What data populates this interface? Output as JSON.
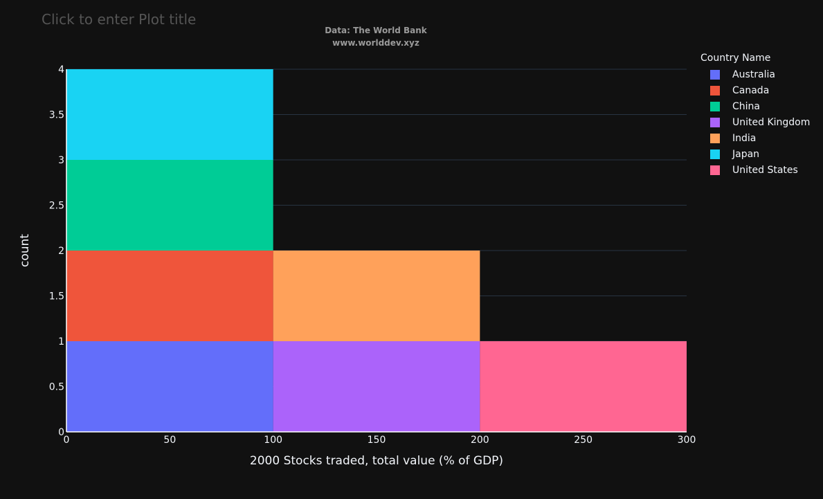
{
  "title_placeholder": "Click to enter Plot title",
  "source": {
    "line1": "Data: The World Bank",
    "line2": "www.worlddev.xyz"
  },
  "legend": {
    "title": "Country Name",
    "items": [
      {
        "label": "Australia",
        "color": "#636efa"
      },
      {
        "label": "Canada",
        "color": "#ef553b"
      },
      {
        "label": "China",
        "color": "#00cc96"
      },
      {
        "label": "United Kingdom",
        "color": "#ab63fa"
      },
      {
        "label": "India",
        "color": "#ffa15a"
      },
      {
        "label": "Japan",
        "color": "#19d3f3"
      },
      {
        "label": "United States",
        "color": "#ff6692"
      }
    ]
  },
  "chart_data": {
    "type": "bar",
    "barmode": "stack",
    "xlabel": "2000 Stocks traded, total value (% of GDP)",
    "ylabel": "count",
    "xlim": [
      0,
      300
    ],
    "ylim": [
      0,
      4
    ],
    "xticks": [
      0,
      50,
      100,
      150,
      200,
      250,
      300
    ],
    "yticks": [
      0,
      0.5,
      1,
      1.5,
      2,
      2.5,
      3,
      3.5,
      4
    ],
    "bins": [
      [
        0,
        100
      ],
      [
        100,
        200
      ],
      [
        200,
        300
      ]
    ],
    "series": [
      {
        "name": "Australia",
        "color": "#636efa",
        "values": [
          1,
          0,
          0
        ]
      },
      {
        "name": "Canada",
        "color": "#ef553b",
        "values": [
          1,
          0,
          0
        ]
      },
      {
        "name": "China",
        "color": "#00cc96",
        "values": [
          1,
          0,
          0
        ]
      },
      {
        "name": "United Kingdom",
        "color": "#ab63fa",
        "values": [
          0,
          1,
          0
        ]
      },
      {
        "name": "India",
        "color": "#ffa15a",
        "values": [
          0,
          1,
          0
        ]
      },
      {
        "name": "Japan",
        "color": "#19d3f3",
        "values": [
          1,
          0,
          0
        ]
      },
      {
        "name": "United States",
        "color": "#ff6692",
        "values": [
          0,
          0,
          1
        ]
      }
    ],
    "grid": true,
    "legend_position": "right"
  }
}
